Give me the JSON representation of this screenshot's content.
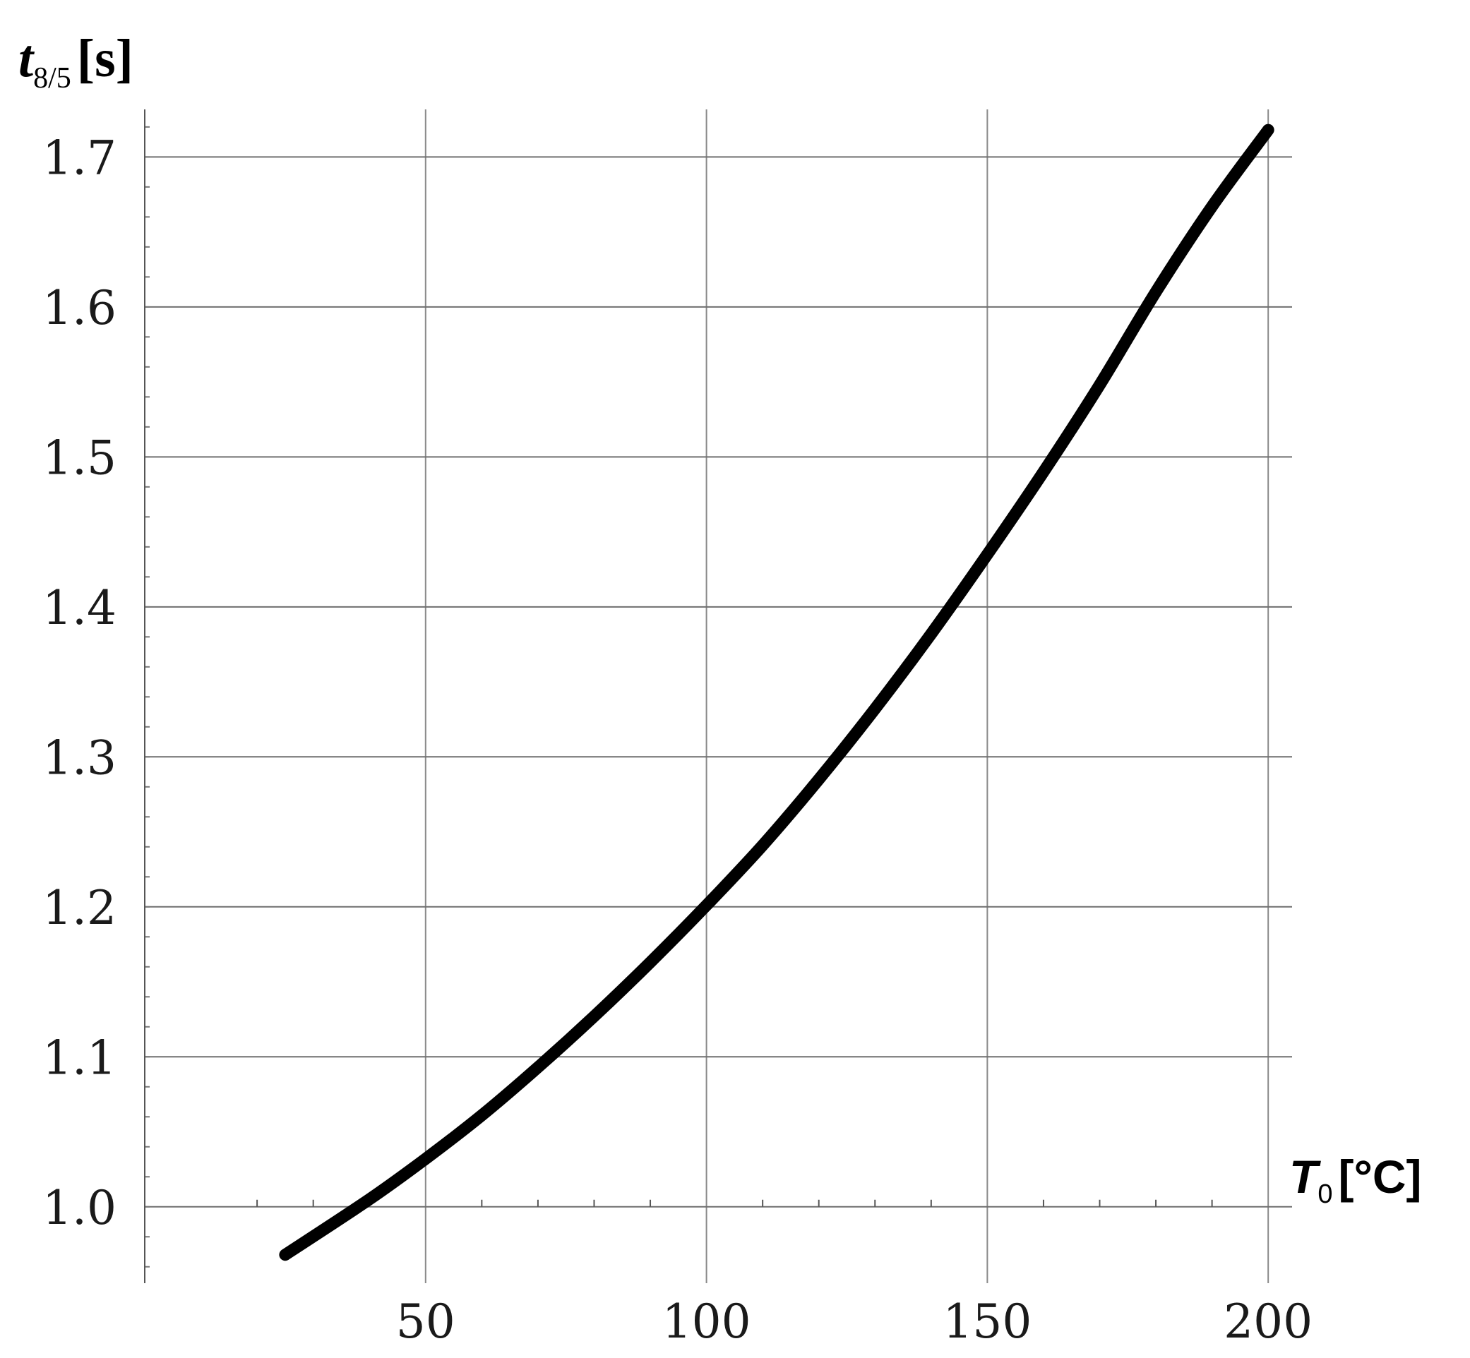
{
  "chart_data": {
    "type": "line",
    "title": "",
    "ylabel": {
      "symbol": "t",
      "subscript": "8/5",
      "unit": "[s]"
    },
    "xlabel": {
      "symbol": "T",
      "subscript": "0",
      "unit": "[°C]"
    },
    "xlim": [
      0,
      204
    ],
    "ylim": [
      0.95,
      1.735
    ],
    "x_ticks": [
      50,
      100,
      150,
      200
    ],
    "x_tick_labels": [
      "50",
      "100",
      "150",
      "200"
    ],
    "y_ticks": [
      1.0,
      1.1,
      1.2,
      1.3,
      1.4,
      1.5,
      1.6,
      1.7
    ],
    "y_tick_labels": [
      "1.0",
      "1.1",
      "1.2",
      "1.3",
      "1.4",
      "1.5",
      "1.6",
      "1.7"
    ],
    "grid": true,
    "series": [
      {
        "color": "#000000",
        "x": [
          25,
          40,
          50,
          60,
          70,
          80,
          90,
          100,
          110,
          120,
          130,
          140,
          150,
          160,
          170,
          180,
          190,
          200
        ],
        "y": [
          0.968,
          1.005,
          1.032,
          1.061,
          1.093,
          1.127,
          1.163,
          1.201,
          1.241,
          1.285,
          1.332,
          1.382,
          1.435,
          1.49,
          1.548,
          1.61,
          1.667,
          1.718
        ]
      }
    ]
  }
}
